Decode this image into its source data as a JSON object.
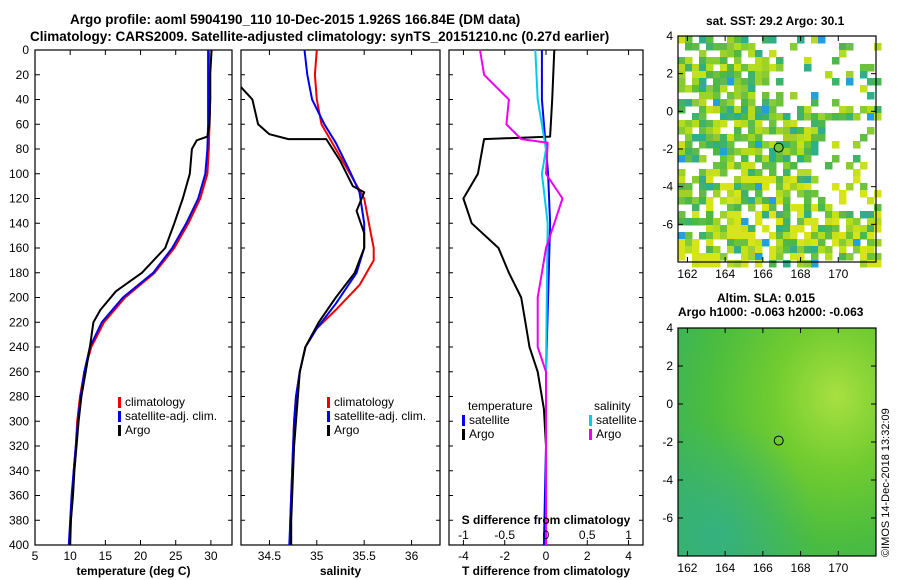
{
  "header": {
    "line1": "Argo profile: aoml 5904190_110 10-Dec-2015 1.926S 166.84E (DM data)",
    "line2": "Climatology: CARS2009. Satellite-adjusted climatology: synTS_20151210.nc (0.27d earlier)"
  },
  "map_titles": {
    "sst": "sat. SST: 29.2 Argo: 30.1",
    "sla": "Altim. SLA: 0.015",
    "h": "Argo h1000: -0.063 h2000: -0.063"
  },
  "credit": "©IMOS 14-Dec-2018 13:32:09",
  "colors": {
    "climatology": "#ee0000",
    "satellite": "#0000ee",
    "argo": "#000000",
    "salinity_sat": "#00ccee",
    "salinity_argo": "#ee00ee"
  },
  "chart_data": [
    {
      "type": "line",
      "id": "temperature",
      "xlabel": "temperature (deg C)",
      "ylabel": "",
      "xlim": [
        5,
        33
      ],
      "ylim": [
        400,
        0
      ],
      "xticks": [
        5,
        10,
        15,
        20,
        25,
        30
      ],
      "yticks": [
        0,
        20,
        40,
        60,
        80,
        100,
        120,
        140,
        160,
        180,
        200,
        220,
        240,
        260,
        280,
        300,
        320,
        340,
        360,
        380,
        400
      ],
      "legend": [
        "climatology",
        "satellite-adj. clim.",
        "Argo"
      ],
      "legend_position": "lower-right",
      "series": [
        {
          "name": "climatology",
          "color": "#ee0000",
          "points": [
            [
              29.7,
              0
            ],
            [
              29.9,
              20
            ],
            [
              29.9,
              40
            ],
            [
              29.8,
              60
            ],
            [
              29.7,
              80
            ],
            [
              29.5,
              100
            ],
            [
              28.5,
              120
            ],
            [
              26.8,
              140
            ],
            [
              24.8,
              160
            ],
            [
              22,
              180
            ],
            [
              17.8,
              200
            ],
            [
              14.8,
              220
            ],
            [
              13,
              240
            ],
            [
              12,
              260
            ],
            [
              11.4,
              280
            ],
            [
              11,
              300
            ],
            [
              10.8,
              320
            ],
            [
              10.5,
              340
            ],
            [
              10.3,
              360
            ],
            [
              10.1,
              380
            ],
            [
              9.9,
              400
            ]
          ]
        },
        {
          "name": "satellite-adj. clim.",
          "color": "#0000ee",
          "points": [
            [
              29.6,
              0
            ],
            [
              29.6,
              20
            ],
            [
              29.6,
              40
            ],
            [
              29.6,
              60
            ],
            [
              29.5,
              80
            ],
            [
              29.2,
              100
            ],
            [
              28.2,
              120
            ],
            [
              26.5,
              140
            ],
            [
              24.5,
              160
            ],
            [
              21.8,
              180
            ],
            [
              17.5,
              200
            ],
            [
              14.5,
              220
            ],
            [
              12.8,
              240
            ],
            [
              12,
              260
            ],
            [
              11.5,
              280
            ],
            [
              11.1,
              300
            ],
            [
              10.8,
              320
            ],
            [
              10.5,
              340
            ],
            [
              10.2,
              360
            ],
            [
              10,
              380
            ],
            [
              9.8,
              400
            ]
          ]
        },
        {
          "name": "Argo",
          "color": "#000000",
          "points": [
            [
              30.1,
              0
            ],
            [
              29.9,
              20
            ],
            [
              29.9,
              40
            ],
            [
              29.8,
              60
            ],
            [
              29.5,
              70
            ],
            [
              28,
              73
            ],
            [
              27.3,
              80
            ],
            [
              27,
              100
            ],
            [
              26,
              120
            ],
            [
              24.8,
              140
            ],
            [
              23.5,
              160
            ],
            [
              20.2,
              180
            ],
            [
              16.5,
              195
            ],
            [
              14.3,
              210
            ],
            [
              13.3,
              220
            ],
            [
              12.8,
              240
            ],
            [
              12.2,
              260
            ],
            [
              11.6,
              280
            ],
            [
              11.2,
              300
            ],
            [
              10.9,
              320
            ],
            [
              10.6,
              340
            ],
            [
              10.4,
              360
            ],
            [
              10.1,
              380
            ],
            [
              10,
              400
            ]
          ]
        }
      ]
    },
    {
      "type": "line",
      "id": "salinity",
      "xlabel": "salinity",
      "ylabel": "",
      "xlim": [
        34.2,
        36.3
      ],
      "ylim": [
        400,
        0
      ],
      "xticks": [
        34.5,
        35,
        35.5,
        36
      ],
      "yticks": [],
      "legend": [
        "climatology",
        "satellite-adj. clim.",
        "Argo"
      ],
      "legend_position": "lower-right",
      "series": [
        {
          "name": "climatology",
          "color": "#ee0000",
          "points": [
            [
              35,
              0
            ],
            [
              34.98,
              20
            ],
            [
              35,
              40
            ],
            [
              35.05,
              60
            ],
            [
              35.2,
              80
            ],
            [
              35.35,
              100
            ],
            [
              35.5,
              120
            ],
            [
              35.55,
              140
            ],
            [
              35.6,
              160
            ],
            [
              35.6,
              170
            ],
            [
              35.45,
              190
            ],
            [
              35.2,
              210
            ],
            [
              35,
              225
            ],
            [
              34.88,
              240
            ],
            [
              34.82,
              260
            ],
            [
              34.78,
              280
            ],
            [
              34.76,
              300
            ],
            [
              34.75,
              320
            ],
            [
              34.74,
              340
            ],
            [
              34.73,
              360
            ],
            [
              34.72,
              380
            ],
            [
              34.72,
              400
            ]
          ]
        },
        {
          "name": "satellite-adj. clim.",
          "color": "#0000ee",
          "points": [
            [
              34.87,
              0
            ],
            [
              34.9,
              20
            ],
            [
              34.95,
              40
            ],
            [
              35.08,
              60
            ],
            [
              35.2,
              75
            ],
            [
              35.33,
              95
            ],
            [
              35.45,
              115
            ],
            [
              35.5,
              140
            ],
            [
              35.5,
              160
            ],
            [
              35.42,
              180
            ],
            [
              35.2,
              205
            ],
            [
              35,
              225
            ],
            [
              34.88,
              240
            ],
            [
              34.82,
              260
            ],
            [
              34.78,
              280
            ],
            [
              34.76,
              300
            ],
            [
              34.75,
              320
            ],
            [
              34.74,
              340
            ],
            [
              34.73,
              360
            ],
            [
              34.72,
              380
            ],
            [
              34.71,
              400
            ]
          ]
        },
        {
          "name": "Argo",
          "color": "#000000",
          "points": [
            [
              34.2,
              30
            ],
            [
              34.32,
              40
            ],
            [
              34.38,
              60
            ],
            [
              34.5,
              68
            ],
            [
              34.7,
              72
            ],
            [
              35.1,
              72
            ],
            [
              35.25,
              90
            ],
            [
              35.38,
              110
            ],
            [
              35.5,
              115
            ],
            [
              35.42,
              130
            ],
            [
              35.5,
              148
            ],
            [
              35.5,
              160
            ],
            [
              35.4,
              180
            ],
            [
              35.2,
              200
            ],
            [
              35.02,
              220
            ],
            [
              34.88,
              240
            ],
            [
              34.82,
              260
            ],
            [
              34.8,
              280
            ],
            [
              34.78,
              300
            ],
            [
              34.76,
              320
            ],
            [
              34.75,
              340
            ],
            [
              34.74,
              360
            ],
            [
              34.73,
              380
            ],
            [
              34.73,
              400
            ]
          ]
        }
      ]
    },
    {
      "type": "line",
      "id": "difference",
      "xlabel": "T difference from climatology",
      "top_axis_label": "S difference from climatology",
      "xlim": [
        -4.7,
        4.7
      ],
      "ylim": [
        400,
        0
      ],
      "xticks": [
        -4,
        -2,
        0,
        2,
        4
      ],
      "xticklabels": [
        "-4",
        "-2",
        "0",
        "2",
        "4"
      ],
      "sticks": [
        -1,
        -0.5,
        0,
        0.5,
        1
      ],
      "sticklabels": [
        "-1",
        "-0.5",
        "0",
        "0.5",
        "1"
      ],
      "legend_left": [
        "temperature",
        "satellite",
        "Argo"
      ],
      "legend_right": [
        "salinity",
        "satellite",
        "Argo"
      ],
      "legend_position": "lower-center",
      "series": [
        {
          "name": "temperature satellite",
          "color": "#0000ee",
          "points": [
            [
              -0.2,
              0
            ],
            [
              -0.2,
              40
            ],
            [
              0,
              80
            ],
            [
              0.1,
              100
            ],
            [
              0.2,
              140
            ],
            [
              0.1,
              200
            ],
            [
              0,
              260
            ],
            [
              0,
              320
            ],
            [
              -0.1,
              400
            ]
          ]
        },
        {
          "name": "temperature Argo",
          "color": "#000000",
          "points": [
            [
              0.4,
              0
            ],
            [
              0.3,
              40
            ],
            [
              0.2,
              70
            ],
            [
              -3,
              72
            ],
            [
              -3.3,
              100
            ],
            [
              -4,
              120
            ],
            [
              -3.6,
              140
            ],
            [
              -2.3,
              160
            ],
            [
              -1.8,
              180
            ],
            [
              -1.2,
              200
            ],
            [
              -1,
              220
            ],
            [
              -0.8,
              240
            ],
            [
              -0.4,
              260
            ],
            [
              -0.1,
              290
            ],
            [
              0,
              320
            ],
            [
              0,
              400
            ]
          ]
        },
        {
          "name": "salinity satellite",
          "color": "#00ccee",
          "points": [
            [
              -0.13,
              0
            ],
            [
              -0.1,
              40
            ],
            [
              0,
              80
            ],
            [
              -0.05,
              100
            ],
            [
              0.02,
              140
            ],
            [
              0.01,
              200
            ],
            [
              0,
              260
            ],
            [
              0,
              320
            ],
            [
              0,
              400
            ]
          ]
        },
        {
          "name": "salinity Argo",
          "color": "#ee00ee",
          "points": [
            [
              -0.8,
              0
            ],
            [
              -0.75,
              20
            ],
            [
              -0.45,
              40
            ],
            [
              -0.48,
              60
            ],
            [
              -0.3,
              72
            ],
            [
              0.02,
              75
            ],
            [
              0,
              100
            ],
            [
              0.2,
              120
            ],
            [
              0.1,
              140
            ],
            [
              0,
              160
            ],
            [
              -0.05,
              180
            ],
            [
              -0.1,
              200
            ],
            [
              -0.1,
              220
            ],
            [
              -0.1,
              240
            ],
            [
              0,
              260
            ],
            [
              0,
              280
            ],
            [
              0,
              300
            ],
            [
              0,
              320
            ],
            [
              0,
              340
            ],
            [
              0,
              400
            ]
          ]
        }
      ]
    },
    {
      "type": "heatmap",
      "id": "sst_map",
      "title": "sat. SST: 29.2 Argo: 30.1",
      "xlim": [
        161.5,
        172
      ],
      "ylim": [
        -8,
        4
      ],
      "xticks": [
        162,
        164,
        166,
        168,
        170
      ],
      "yticks": [
        -6,
        -4,
        -2,
        0,
        2,
        4
      ],
      "argo_position": [
        166.84,
        -1.926
      ]
    },
    {
      "type": "heatmap",
      "id": "sla_map",
      "title": "Altim. SLA: 0.015",
      "xlim": [
        161.5,
        172
      ],
      "ylim": [
        -8,
        4
      ],
      "xticks": [
        162,
        164,
        166,
        168,
        170
      ],
      "yticks": [
        -6,
        -4,
        -2,
        0,
        2,
        4
      ],
      "argo_position": [
        166.84,
        -1.926
      ]
    }
  ]
}
